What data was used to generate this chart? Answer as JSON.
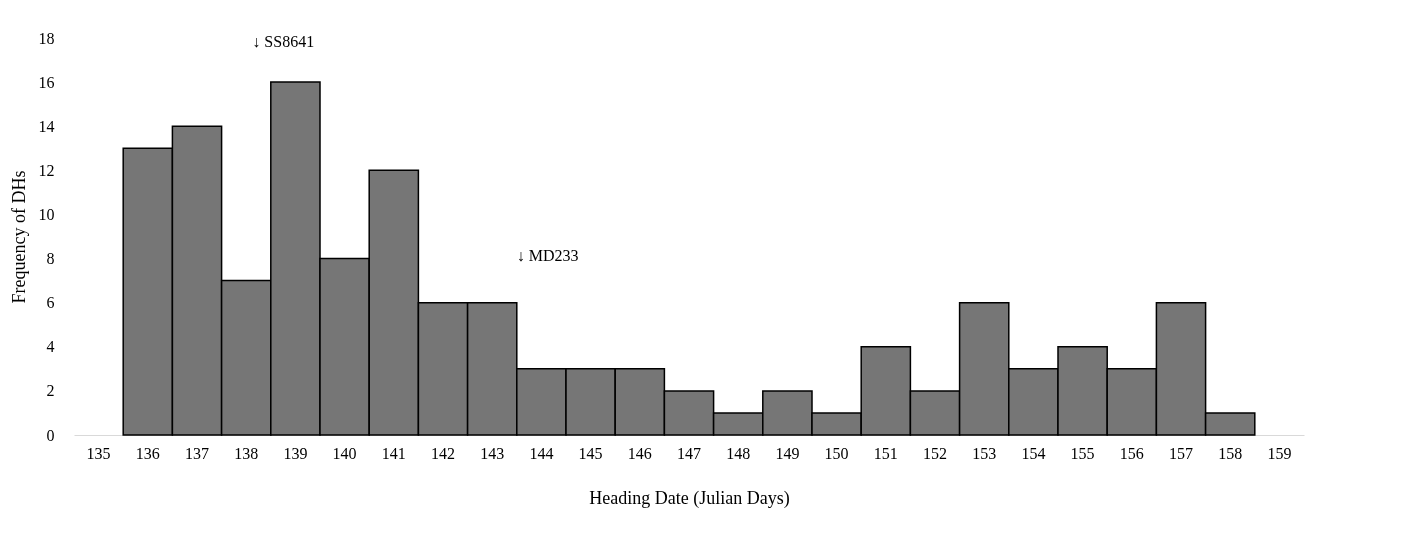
{
  "chart_data": {
    "type": "bar",
    "xlabel": "Heading Date (Julian Days)",
    "ylabel": "Frequency of DHs",
    "categories": [
      "135",
      "136",
      "137",
      "138",
      "139",
      "140",
      "141",
      "142",
      "143",
      "144",
      "145",
      "146",
      "147",
      "148",
      "149",
      "150",
      "151",
      "152",
      "153",
      "154",
      "155",
      "156",
      "157",
      "158",
      "159"
    ],
    "values": [
      null,
      13,
      14,
      7,
      16,
      8,
      12,
      6,
      6,
      3,
      3,
      3,
      2,
      1,
      2,
      1,
      4,
      2,
      6,
      3,
      4,
      3,
      6,
      1,
      null
    ],
    "color": "#767676",
    "ylim": [
      0,
      18
    ],
    "yticks": [
      0,
      2,
      4,
      6,
      8,
      10,
      12,
      14,
      16,
      18
    ],
    "grid": false,
    "annotations": [
      "↓ SS8641",
      "↓ MD233"
    ]
  }
}
